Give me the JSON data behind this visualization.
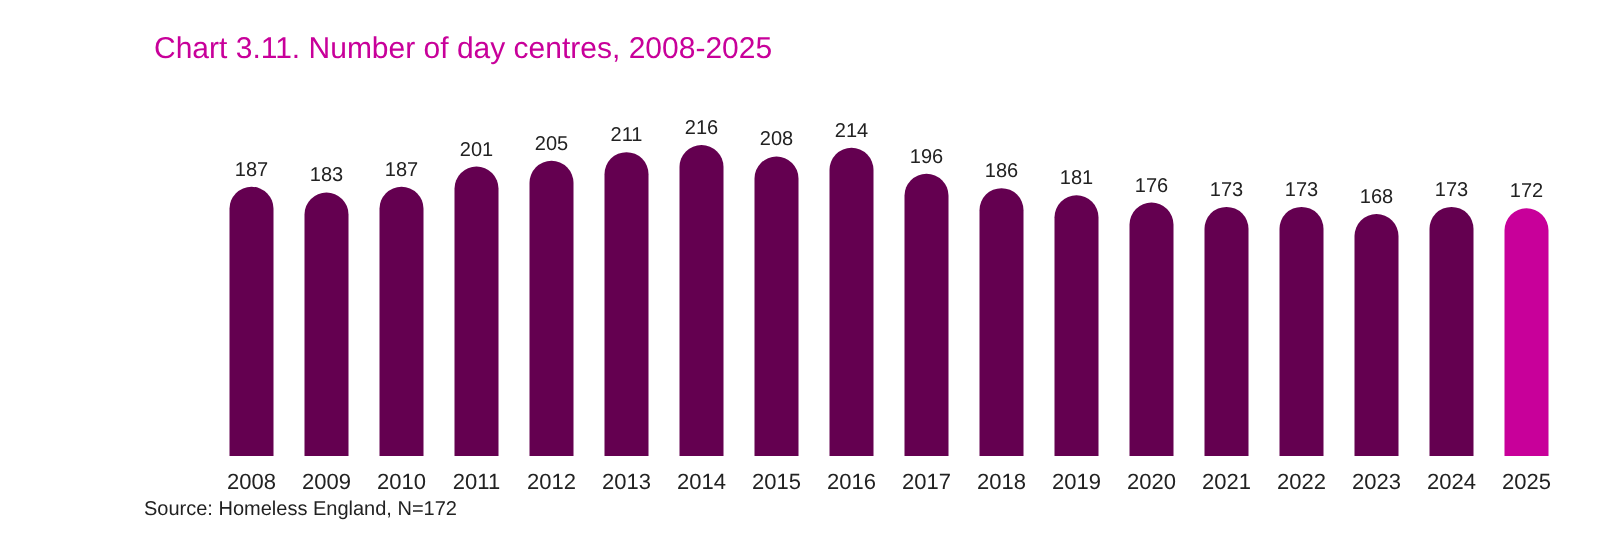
{
  "chart_data": {
    "type": "bar",
    "title": "Chart 3.11. Number of day centres, 2008-2025",
    "categories": [
      "2008",
      "2009",
      "2010",
      "2011",
      "2012",
      "2013",
      "2014",
      "2015",
      "2016",
      "2017",
      "2018",
      "2019",
      "2020",
      "2021",
      "2022",
      "2023",
      "2024",
      "2025"
    ],
    "values": [
      187,
      183,
      187,
      201,
      205,
      211,
      216,
      208,
      214,
      196,
      186,
      181,
      176,
      173,
      173,
      168,
      173,
      172
    ],
    "colors": [
      "#640050",
      "#640050",
      "#640050",
      "#640050",
      "#640050",
      "#640050",
      "#640050",
      "#640050",
      "#640050",
      "#640050",
      "#640050",
      "#640050",
      "#640050",
      "#640050",
      "#640050",
      "#640050",
      "#640050",
      "#c8009a"
    ],
    "data_labels": true,
    "annotations": [
      "Source: Homeless England, N=172"
    ]
  }
}
